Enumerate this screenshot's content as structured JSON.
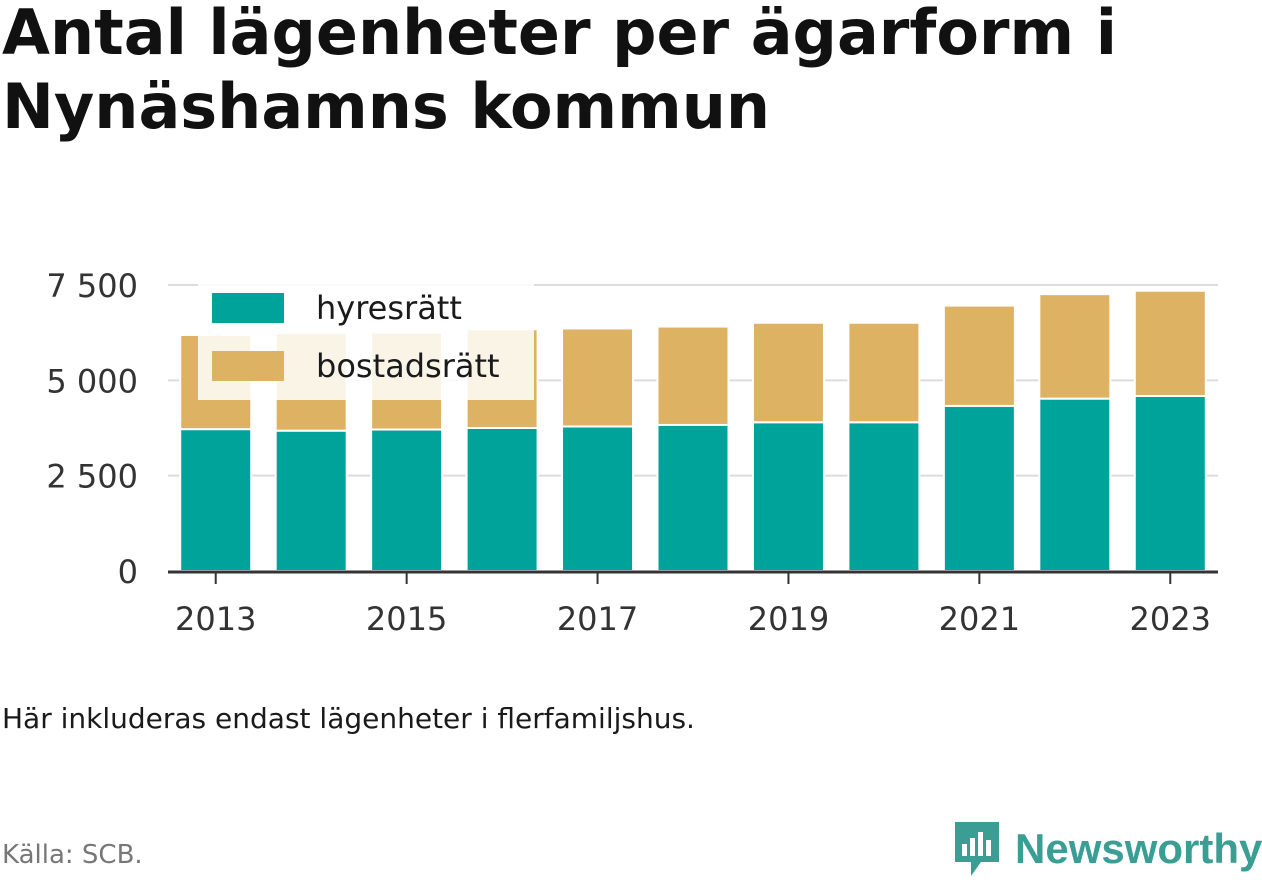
{
  "title_lines": [
    "Antal lägenheter per ägarform i",
    "Nynäshamns kommun"
  ],
  "note": "Här inkluderas endast lägenheter i flerfamiljshus.",
  "source": "Källa: SCB.",
  "brand": {
    "name": "Newsworthy",
    "icon": "newsworthy-logo-icon",
    "color": "#3a9e94"
  },
  "chart_data": {
    "type": "bar",
    "stacked": true,
    "categories": [
      "2013",
      "2014",
      "2015",
      "2016",
      "2017",
      "2018",
      "2019",
      "2020",
      "2021",
      "2022",
      "2023"
    ],
    "x_tick_labels": [
      "2013",
      "2015",
      "2017",
      "2019",
      "2021",
      "2023"
    ],
    "series": [
      {
        "name": "hyresrätt",
        "color": "#00a39a",
        "values": [
          3720,
          3680,
          3710,
          3750,
          3790,
          3830,
          3900,
          3900,
          4330,
          4520,
          4590
        ]
      },
      {
        "name": "bostadsrätt",
        "color": "#ddb262",
        "values": [
          2470,
          2560,
          2540,
          2590,
          2570,
          2580,
          2610,
          2610,
          2630,
          2740,
          2760
        ]
      }
    ],
    "y_ticks": [
      0,
      2500,
      5000,
      7500
    ],
    "y_tick_labels": [
      "0",
      "2 500",
      "5 000",
      "7 500"
    ],
    "ylim": [
      0,
      7500
    ],
    "grid": true,
    "legend_position": "top-left"
  }
}
